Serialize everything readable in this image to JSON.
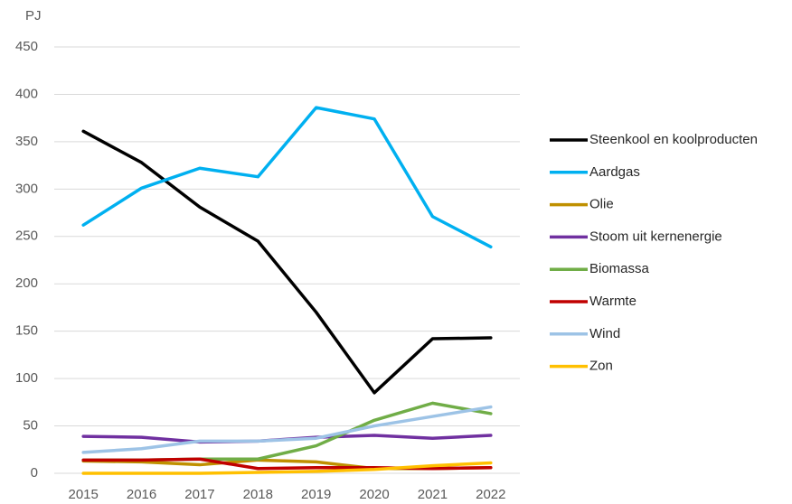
{
  "chart_data": {
    "type": "line",
    "y_label": "PJ",
    "categories": [
      "2015",
      "2016",
      "2017",
      "2018",
      "2019",
      "2020",
      "2021",
      "2022"
    ],
    "series": [
      {
        "name": "Steenkool en koolproducten",
        "color": "#000000",
        "values": [
          361,
          328,
          281,
          245,
          170,
          85,
          142,
          143
        ]
      },
      {
        "name": "Aardgas",
        "color": "#00b0f0",
        "values": [
          262,
          301,
          322,
          313,
          386,
          374,
          271,
          239
        ]
      },
      {
        "name": "Olie",
        "color": "#bf9000",
        "values": [
          13,
          12,
          9,
          14,
          12,
          5,
          5,
          6
        ]
      },
      {
        "name": "Stoom uit kernenergie",
        "color": "#7030a0",
        "values": [
          39,
          38,
          33,
          34,
          38,
          40,
          37,
          40
        ]
      },
      {
        "name": "Biomassa",
        "color": "#70ad47",
        "values": [
          14,
          14,
          15,
          15,
          29,
          56,
          74,
          63
        ]
      },
      {
        "name": "Warmte",
        "color": "#c00000",
        "values": [
          14,
          14,
          15,
          5,
          6,
          6,
          5,
          6
        ]
      },
      {
        "name": "Wind",
        "color": "#9dc3e6",
        "values": [
          22,
          26,
          34,
          34,
          37,
          50,
          60,
          70
        ]
      },
      {
        "name": "Zon",
        "color": "#ffc000",
        "values": [
          0,
          0,
          0,
          1,
          2,
          4,
          8,
          11
        ]
      }
    ],
    "ylim": [
      0,
      450
    ],
    "yticks": [
      0,
      50,
      100,
      150,
      200,
      250,
      300,
      350,
      400,
      450
    ],
    "grid": true,
    "legend": "right"
  }
}
